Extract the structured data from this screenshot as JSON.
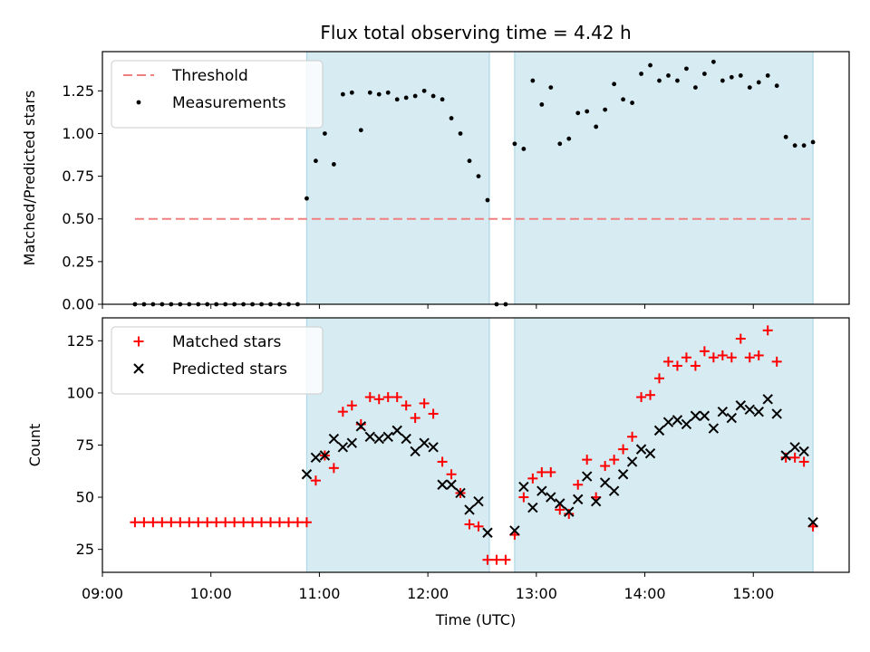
{
  "title": "Flux total observing time = 4.42 h",
  "chart_data": [
    {
      "type": "scatter",
      "ylabel": "Matched/Predicted stars",
      "ylim": [
        0,
        1.48
      ],
      "yticks": [
        0.0,
        0.25,
        0.5,
        0.75,
        1.0,
        1.25
      ],
      "ytick_labels": [
        "0.00",
        "0.25",
        "0.50",
        "0.75",
        "1.00",
        "1.25"
      ],
      "legend_position": "upper-left",
      "shaded_intervals": [
        [
          "10:53",
          "12:34"
        ],
        [
          "12:48",
          "15:33"
        ]
      ],
      "threshold": {
        "name": "Threshold",
        "value": 0.5,
        "x_range": [
          "09:18",
          "15:33"
        ],
        "color": "#f08080"
      },
      "series": [
        {
          "name": "Measurements",
          "marker": "dot",
          "color": "#000000",
          "points": [
            [
              "09:18",
              0
            ],
            [
              "09:23",
              0
            ],
            [
              "09:28",
              0
            ],
            [
              "09:33",
              0
            ],
            [
              "09:38",
              0
            ],
            [
              "09:43",
              0
            ],
            [
              "09:48",
              0
            ],
            [
              "09:53",
              0
            ],
            [
              "09:58",
              0
            ],
            [
              "10:03",
              0
            ],
            [
              "10:08",
              0
            ],
            [
              "10:13",
              0
            ],
            [
              "10:18",
              0
            ],
            [
              "10:23",
              0
            ],
            [
              "10:28",
              0
            ],
            [
              "10:33",
              0
            ],
            [
              "10:38",
              0
            ],
            [
              "10:43",
              0
            ],
            [
              "10:48",
              0
            ],
            [
              "10:53",
              0.62
            ],
            [
              "10:58",
              0.84
            ],
            [
              "11:03",
              1.0
            ],
            [
              "11:08",
              0.82
            ],
            [
              "11:13",
              1.23
            ],
            [
              "11:18",
              1.24
            ],
            [
              "11:23",
              1.02
            ],
            [
              "11:28",
              1.24
            ],
            [
              "11:33",
              1.23
            ],
            [
              "11:38",
              1.24
            ],
            [
              "11:43",
              1.2
            ],
            [
              "11:48",
              1.21
            ],
            [
              "11:53",
              1.22
            ],
            [
              "11:58",
              1.25
            ],
            [
              "12:03",
              1.22
            ],
            [
              "12:08",
              1.2
            ],
            [
              "12:13",
              1.09
            ],
            [
              "12:18",
              1.0
            ],
            [
              "12:23",
              0.84
            ],
            [
              "12:28",
              0.75
            ],
            [
              "12:33",
              0.61
            ],
            [
              "12:38",
              0
            ],
            [
              "12:43",
              0
            ],
            [
              "12:48",
              0.94
            ],
            [
              "12:53",
              0.91
            ],
            [
              "12:58",
              1.31
            ],
            [
              "13:03",
              1.17
            ],
            [
              "13:08",
              1.27
            ],
            [
              "13:13",
              0.94
            ],
            [
              "13:18",
              0.97
            ],
            [
              "13:23",
              1.12
            ],
            [
              "13:28",
              1.13
            ],
            [
              "13:33",
              1.04
            ],
            [
              "13:38",
              1.14
            ],
            [
              "13:43",
              1.29
            ],
            [
              "13:48",
              1.2
            ],
            [
              "13:53",
              1.18
            ],
            [
              "13:58",
              1.35
            ],
            [
              "14:03",
              1.4
            ],
            [
              "14:08",
              1.31
            ],
            [
              "14:13",
              1.34
            ],
            [
              "14:18",
              1.31
            ],
            [
              "14:23",
              1.38
            ],
            [
              "14:28",
              1.27
            ],
            [
              "14:33",
              1.35
            ],
            [
              "14:38",
              1.42
            ],
            [
              "14:43",
              1.31
            ],
            [
              "14:48",
              1.33
            ],
            [
              "14:53",
              1.34
            ],
            [
              "14:58",
              1.27
            ],
            [
              "15:03",
              1.3
            ],
            [
              "15:08",
              1.34
            ],
            [
              "15:13",
              1.28
            ],
            [
              "15:18",
              0.98
            ],
            [
              "15:23",
              0.93
            ],
            [
              "15:28",
              0.93
            ],
            [
              "15:33",
              0.95
            ]
          ]
        }
      ]
    },
    {
      "type": "scatter",
      "xlabel": "Time (UTC)",
      "ylabel": "Count",
      "xlim": [
        "09:00",
        "15:53"
      ],
      "xticks": [
        "09:00",
        "10:00",
        "11:00",
        "12:00",
        "13:00",
        "14:00",
        "15:00"
      ],
      "ylim": [
        14,
        136
      ],
      "yticks": [
        25,
        50,
        75,
        100,
        125
      ],
      "legend_position": "upper-left",
      "series": [
        {
          "name": "Matched stars",
          "marker": "plus",
          "color": "#ff0000",
          "points": [
            [
              "09:18",
              38
            ],
            [
              "09:23",
              38
            ],
            [
              "09:28",
              38
            ],
            [
              "09:33",
              38
            ],
            [
              "09:38",
              38
            ],
            [
              "09:43",
              38
            ],
            [
              "09:48",
              38
            ],
            [
              "09:53",
              38
            ],
            [
              "09:58",
              38
            ],
            [
              "10:03",
              38
            ],
            [
              "10:08",
              38
            ],
            [
              "10:13",
              38
            ],
            [
              "10:18",
              38
            ],
            [
              "10:23",
              38
            ],
            [
              "10:28",
              38
            ],
            [
              "10:33",
              38
            ],
            [
              "10:38",
              38
            ],
            [
              "10:43",
              38
            ],
            [
              "10:48",
              38
            ],
            [
              "10:53",
              38
            ],
            [
              "10:58",
              58
            ],
            [
              "11:03",
              70
            ],
            [
              "11:08",
              64
            ],
            [
              "11:13",
              91
            ],
            [
              "11:18",
              94
            ],
            [
              "11:23",
              85
            ],
            [
              "11:28",
              98
            ],
            [
              "11:33",
              97
            ],
            [
              "11:38",
              98
            ],
            [
              "11:43",
              98
            ],
            [
              "11:48",
              94
            ],
            [
              "11:53",
              88
            ],
            [
              "11:58",
              95
            ],
            [
              "12:03",
              90
            ],
            [
              "12:08",
              67
            ],
            [
              "12:13",
              61
            ],
            [
              "12:18",
              52
            ],
            [
              "12:23",
              37
            ],
            [
              "12:28",
              36
            ],
            [
              "12:33",
              20
            ],
            [
              "12:38",
              20
            ],
            [
              "12:43",
              20
            ],
            [
              "12:48",
              32
            ],
            [
              "12:53",
              50
            ],
            [
              "12:58",
              59
            ],
            [
              "13:03",
              62
            ],
            [
              "13:08",
              62
            ],
            [
              "13:13",
              44
            ],
            [
              "13:18",
              42
            ],
            [
              "13:23",
              56
            ],
            [
              "13:28",
              68
            ],
            [
              "13:33",
              50
            ],
            [
              "13:38",
              65
            ],
            [
              "13:43",
              68
            ],
            [
              "13:48",
              73
            ],
            [
              "13:53",
              79
            ],
            [
              "13:58",
              98
            ],
            [
              "14:03",
              99
            ],
            [
              "14:08",
              107
            ],
            [
              "14:13",
              115
            ],
            [
              "14:18",
              113
            ],
            [
              "14:23",
              117
            ],
            [
              "14:28",
              113
            ],
            [
              "14:33",
              120
            ],
            [
              "14:38",
              117
            ],
            [
              "14:43",
              118
            ],
            [
              "14:48",
              117
            ],
            [
              "14:53",
              126
            ],
            [
              "14:58",
              117
            ],
            [
              "15:03",
              118
            ],
            [
              "15:08",
              130
            ],
            [
              "15:13",
              115
            ],
            [
              "15:18",
              69
            ],
            [
              "15:23",
              69
            ],
            [
              "15:28",
              67
            ],
            [
              "15:33",
              36
            ]
          ]
        },
        {
          "name": "Predicted stars",
          "marker": "x",
          "color": "#000000",
          "points": [
            [
              "10:53",
              61
            ],
            [
              "10:58",
              69
            ],
            [
              "11:03",
              70
            ],
            [
              "11:08",
              78
            ],
            [
              "11:13",
              74
            ],
            [
              "11:18",
              76
            ],
            [
              "11:23",
              84
            ],
            [
              "11:28",
              79
            ],
            [
              "11:33",
              78
            ],
            [
              "11:38",
              79
            ],
            [
              "11:43",
              82
            ],
            [
              "11:48",
              78
            ],
            [
              "11:53",
              72
            ],
            [
              "11:58",
              76
            ],
            [
              "12:03",
              74
            ],
            [
              "12:08",
              56
            ],
            [
              "12:13",
              56
            ],
            [
              "12:18",
              52
            ],
            [
              "12:23",
              44
            ],
            [
              "12:28",
              48
            ],
            [
              "12:33",
              33
            ],
            [
              "12:48",
              34
            ],
            [
              "12:53",
              55
            ],
            [
              "12:58",
              45
            ],
            [
              "13:03",
              53
            ],
            [
              "13:08",
              50
            ],
            [
              "13:13",
              47
            ],
            [
              "13:18",
              43
            ],
            [
              "13:23",
              49
            ],
            [
              "13:28",
              60
            ],
            [
              "13:33",
              48
            ],
            [
              "13:38",
              57
            ],
            [
              "13:43",
              53
            ],
            [
              "13:48",
              61
            ],
            [
              "13:53",
              67
            ],
            [
              "13:58",
              73
            ],
            [
              "14:03",
              71
            ],
            [
              "14:08",
              82
            ],
            [
              "14:13",
              86
            ],
            [
              "14:18",
              87
            ],
            [
              "14:23",
              85
            ],
            [
              "14:28",
              89
            ],
            [
              "14:33",
              89
            ],
            [
              "14:38",
              83
            ],
            [
              "14:43",
              91
            ],
            [
              "14:48",
              88
            ],
            [
              "14:53",
              94
            ],
            [
              "14:58",
              92
            ],
            [
              "15:03",
              91
            ],
            [
              "15:08",
              97
            ],
            [
              "15:13",
              90
            ],
            [
              "15:18",
              70
            ],
            [
              "15:23",
              74
            ],
            [
              "15:28",
              72
            ],
            [
              "15:33",
              38
            ]
          ]
        }
      ]
    }
  ]
}
